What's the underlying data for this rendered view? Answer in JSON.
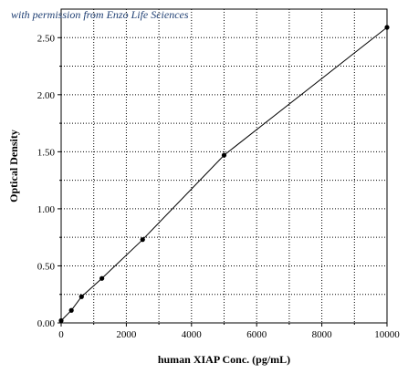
{
  "chart_data": {
    "type": "line",
    "annotation": "with permission from Enzo Life Sciences",
    "xlabel": "human XIAP Conc. (pg/mL)",
    "ylabel": "Optical Density",
    "xlim": [
      0,
      10000
    ],
    "ylim": [
      0,
      2.75
    ],
    "x_ticks": [
      0,
      2000,
      4000,
      6000,
      8000,
      10000
    ],
    "y_ticks": [
      0.0,
      0.5,
      1.0,
      1.5,
      2.0,
      2.5
    ],
    "x_tick_labels": [
      "0",
      "2000",
      "4000",
      "6000",
      "8000",
      "10000"
    ],
    "y_tick_labels": [
      "0.00",
      "0.50",
      "1.00",
      "1.50",
      "2.00",
      "2.50"
    ],
    "grid": true,
    "series": [
      {
        "x": [
          0,
          313,
          625,
          1250,
          2500,
          5000,
          10000
        ],
        "y": [
          0.02,
          0.11,
          0.23,
          0.39,
          0.73,
          1.47,
          2.59
        ]
      }
    ]
  }
}
